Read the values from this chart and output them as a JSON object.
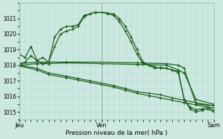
{
  "title": "Pression niveau de la mer( hPa )",
  "background_color": "#cce8e0",
  "grid_color": "#b0d8d0",
  "line_color": "#1a5c1a",
  "ylim": [
    1014.5,
    1022.0
  ],
  "yticks": [
    1015,
    1016,
    1017,
    1018,
    1019,
    1020,
    1021
  ],
  "xtick_labels": [
    "Jeu",
    "Ven",
    "Sam"
  ],
  "xtick_positions": [
    0,
    14,
    33
  ],
  "total_points": 34,
  "lines": [
    {
      "pts": [
        [
          0,
          1018.7
        ],
        [
          1,
          1018.5
        ],
        [
          2,
          1019.2
        ],
        [
          3,
          1018.3
        ],
        [
          4,
          1018.1
        ],
        [
          5,
          1018.2
        ],
        [
          6,
          1019.8
        ],
        [
          7,
          1020.3
        ],
        [
          8,
          1020.5
        ],
        [
          9,
          1020.5
        ],
        [
          10,
          1020.6
        ],
        [
          11,
          1021.2
        ],
        [
          12,
          1021.3
        ],
        [
          13,
          1021.4
        ],
        [
          14,
          1021.4
        ],
        [
          15,
          1021.35
        ],
        [
          16,
          1021.3
        ],
        [
          17,
          1021.0
        ],
        [
          18,
          1020.5
        ],
        [
          19,
          1019.8
        ],
        [
          20,
          1019.0
        ],
        [
          21,
          1018.2
        ],
        [
          22,
          1018.0
        ],
        [
          23,
          1017.8
        ],
        [
          24,
          1017.85
        ],
        [
          25,
          1017.8
        ],
        [
          26,
          1017.7
        ],
        [
          27,
          1017.6
        ],
        [
          28,
          1015.8
        ],
        [
          29,
          1015.2
        ],
        [
          30,
          1015.0
        ],
        [
          31,
          1015.1
        ],
        [
          32,
          1015.2
        ],
        [
          33,
          1015.0
        ]
      ]
    },
    {
      "pts": [
        [
          0,
          1018.1
        ],
        [
          1,
          1018.2
        ],
        [
          2,
          1018.6
        ],
        [
          3,
          1018.3
        ],
        [
          4,
          1018.5
        ],
        [
          5,
          1018.2
        ],
        [
          6,
          1019.2
        ],
        [
          7,
          1020.0
        ],
        [
          8,
          1020.2
        ],
        [
          9,
          1020.3
        ],
        [
          10,
          1020.5
        ],
        [
          11,
          1021.1
        ],
        [
          12,
          1021.3
        ],
        [
          13,
          1021.4
        ],
        [
          14,
          1021.4
        ],
        [
          15,
          1021.3
        ],
        [
          16,
          1021.2
        ],
        [
          17,
          1020.8
        ],
        [
          18,
          1020.2
        ],
        [
          19,
          1019.5
        ],
        [
          20,
          1018.7
        ],
        [
          21,
          1018.1
        ],
        [
          22,
          1018.0
        ],
        [
          23,
          1017.9
        ],
        [
          24,
          1017.8
        ],
        [
          25,
          1017.8
        ],
        [
          26,
          1017.7
        ],
        [
          27,
          1017.5
        ],
        [
          28,
          1015.8
        ],
        [
          29,
          1015.3
        ],
        [
          30,
          1015.15
        ],
        [
          31,
          1015.2
        ],
        [
          32,
          1015.3
        ],
        [
          33,
          1015.1
        ]
      ]
    },
    {
      "pts": [
        [
          0,
          1018.1
        ],
        [
          3,
          1018.2
        ],
        [
          5,
          1018.2
        ],
        [
          8,
          1018.2
        ],
        [
          14,
          1018.2
        ],
        [
          20,
          1018.15
        ],
        [
          25,
          1018.1
        ],
        [
          27,
          1018.0
        ],
        [
          28,
          1017.8
        ],
        [
          30,
          1015.5
        ],
        [
          33,
          1015.4
        ]
      ]
    },
    {
      "pts": [
        [
          0,
          1018.0
        ],
        [
          3,
          1018.1
        ],
        [
          5,
          1018.1
        ],
        [
          8,
          1018.15
        ],
        [
          14,
          1018.1
        ],
        [
          20,
          1018.05
        ],
        [
          25,
          1018.0
        ],
        [
          27,
          1017.7
        ],
        [
          28,
          1017.5
        ],
        [
          30,
          1015.8
        ],
        [
          33,
          1015.5
        ]
      ]
    },
    {
      "pts": [
        [
          0,
          1018.0
        ],
        [
          3,
          1017.8
        ],
        [
          5,
          1017.5
        ],
        [
          8,
          1017.3
        ],
        [
          10,
          1017.15
        ],
        [
          12,
          1017.0
        ],
        [
          14,
          1016.85
        ],
        [
          16,
          1016.7
        ],
        [
          18,
          1016.5
        ],
        [
          20,
          1016.3
        ],
        [
          22,
          1016.2
        ],
        [
          24,
          1016.1
        ],
        [
          26,
          1015.9
        ],
        [
          28,
          1015.75
        ],
        [
          30,
          1015.6
        ],
        [
          33,
          1015.4
        ]
      ]
    },
    {
      "pts": [
        [
          0,
          1017.95
        ],
        [
          3,
          1017.7
        ],
        [
          5,
          1017.4
        ],
        [
          8,
          1017.2
        ],
        [
          10,
          1017.05
        ],
        [
          12,
          1016.9
        ],
        [
          14,
          1016.75
        ],
        [
          16,
          1016.6
        ],
        [
          18,
          1016.4
        ],
        [
          20,
          1016.2
        ],
        [
          22,
          1016.05
        ],
        [
          24,
          1015.9
        ],
        [
          26,
          1015.75
        ],
        [
          28,
          1015.6
        ],
        [
          30,
          1015.45
        ],
        [
          33,
          1015.25
        ]
      ]
    }
  ]
}
